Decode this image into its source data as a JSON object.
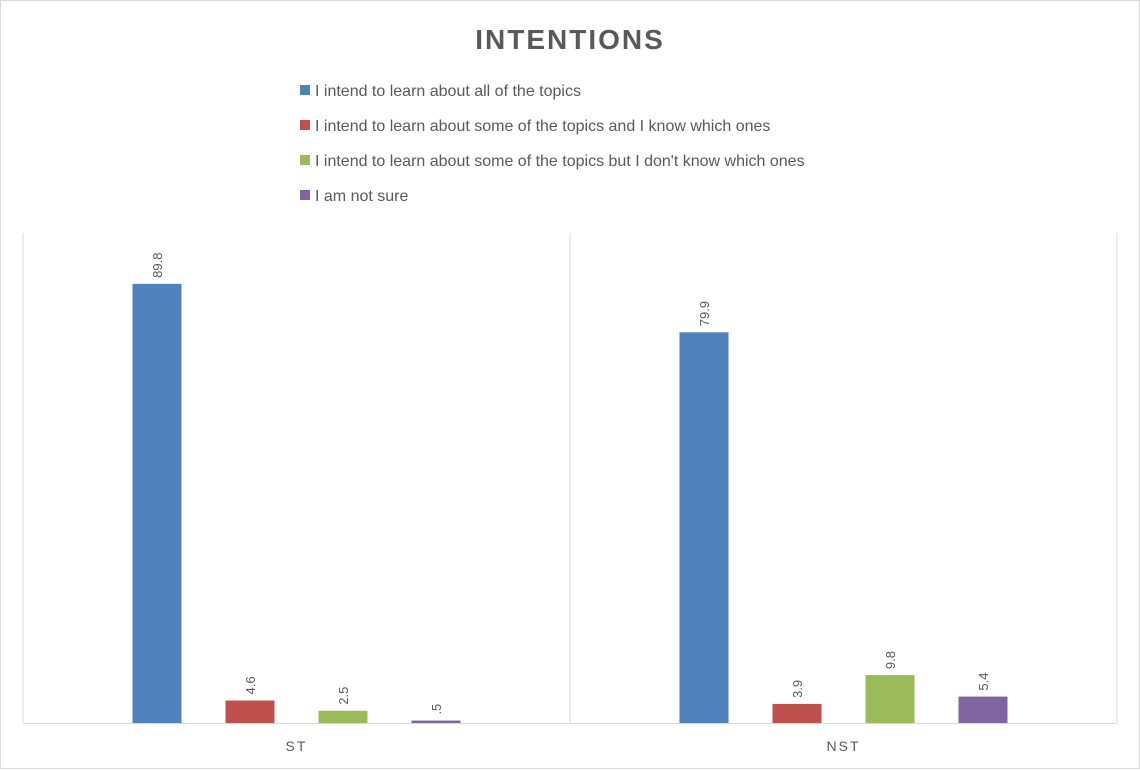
{
  "chart_data": {
    "type": "bar",
    "title": "INTENTIONS",
    "categories": [
      "ST",
      "NST"
    ],
    "series": [
      {
        "name": "I intend to learn about all of the topics",
        "values": [
          89.8,
          79.9
        ],
        "labels": [
          "89.8",
          "79.9"
        ],
        "color": "#4F81BD"
      },
      {
        "name": "I intend to learn about some of the topics and I know which ones",
        "values": [
          4.6,
          3.9
        ],
        "labels": [
          "4.6",
          "3.9"
        ],
        "color": "#C0504D"
      },
      {
        "name": "I intend to learn about some of the topics but I don't know which ones",
        "values": [
          2.5,
          9.8
        ],
        "labels": [
          "2.5",
          "9.8"
        ],
        "color": "#9BBB59"
      },
      {
        "name": "I am not sure",
        "values": [
          0.5,
          5.4
        ],
        "labels": [
          ".5",
          "5.4"
        ],
        "color": "#8064A2"
      }
    ],
    "xlabel": "",
    "ylabel": "",
    "ylim": [
      0,
      100
    ],
    "legend": "top",
    "grid": false
  }
}
